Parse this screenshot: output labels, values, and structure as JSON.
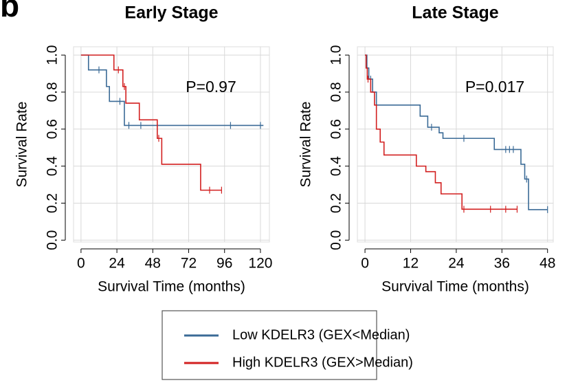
{
  "panel_label": "b",
  "chart_data": [
    {
      "type": "line",
      "step": "post",
      "title": "Early Stage",
      "annotation": "P=0.97",
      "xlabel": "Survival Time (months)",
      "ylabel": "Survival Rate",
      "xlim": [
        -5,
        126
      ],
      "ylim": [
        -0.01,
        1.045
      ],
      "xticks": [
        0,
        24,
        48,
        72,
        96,
        120
      ],
      "yticks": [
        {
          "value": 0,
          "label": "0.0"
        },
        0.2,
        0.4,
        0.6,
        0.8,
        {
          "value": 1,
          "label": "1.0"
        }
      ],
      "grid": true,
      "series": [
        {
          "name": "Low KDELR3 (GEX<Median)",
          "color": "#3a6a96",
          "x": [
            0,
            5,
            17,
            19,
            29,
            122
          ],
          "values": [
            1,
            0.92,
            0.83,
            0.75,
            0.62,
            0.62
          ],
          "censored": {
            "x": [
              12,
              26,
              32,
              40,
              100,
              120
            ],
            "values": [
              0.92,
              0.75,
              0.62,
              0.62,
              0.62,
              0.62
            ]
          }
        },
        {
          "name": "High KDELR3 (GEX>Median)",
          "color": "#d21f1f",
          "x": [
            0,
            22,
            28,
            30,
            39,
            51,
            54,
            80,
            94
          ],
          "values": [
            1,
            0.92,
            0.83,
            0.74,
            0.65,
            0.55,
            0.41,
            0.27,
            0.27
          ],
          "censored": {
            "x": [
              25,
              29,
              52,
              86,
              94
            ],
            "values": [
              0.92,
              0.83,
              0.55,
              0.27,
              0.27
            ]
          }
        }
      ]
    },
    {
      "type": "line",
      "step": "post",
      "title": "Late Stage",
      "annotation": "P=0.017",
      "xlabel": "Survival Time (months)",
      "ylabel": "Survival Rate",
      "xlim": [
        -2,
        49.5
      ],
      "ylim": [
        -0.01,
        1.045
      ],
      "xticks": [
        0,
        12,
        24,
        36,
        48
      ],
      "yticks": [
        {
          "value": 0,
          "label": "0.0"
        },
        0.2,
        0.4,
        0.6,
        0.8,
        {
          "value": 1,
          "label": "1.0"
        }
      ],
      "grid": true,
      "series": [
        {
          "color": "#3a6a96",
          "x": [
            0,
            0.5,
            1,
            2,
            3,
            14.5,
            16.5,
            19.5,
            20.5,
            34,
            41,
            42,
            43,
            48
          ],
          "values": [
            1,
            0.93,
            0.87,
            0.8,
            0.73,
            0.67,
            0.61,
            0.58,
            0.55,
            0.49,
            0.41,
            0.33,
            0.165,
            0.165
          ],
          "censored": {
            "x": [
              1.5,
              17.5,
              26,
              37,
              38,
              39,
              42.5,
              48
            ],
            "values": [
              0.87,
              0.61,
              0.55,
              0.49,
              0.49,
              0.49,
              0.33,
              0.165
            ]
          }
        },
        {
          "color": "#d21f1f",
          "x": [
            0,
            0.3,
            0.6,
            1.5,
            2.5,
            3,
            4,
            5,
            13.5,
            16,
            18.5,
            20,
            25.5,
            40
          ],
          "values": [
            1,
            0.93,
            0.87,
            0.8,
            0.73,
            0.6,
            0.53,
            0.46,
            0.4,
            0.37,
            0.31,
            0.25,
            0.167,
            0.167
          ],
          "censored": {
            "x": [
              0.8,
              26,
              33,
              37,
              40
            ],
            "values": [
              0.87,
              0.167,
              0.167,
              0.167,
              0.167
            ]
          }
        }
      ]
    }
  ]
}
